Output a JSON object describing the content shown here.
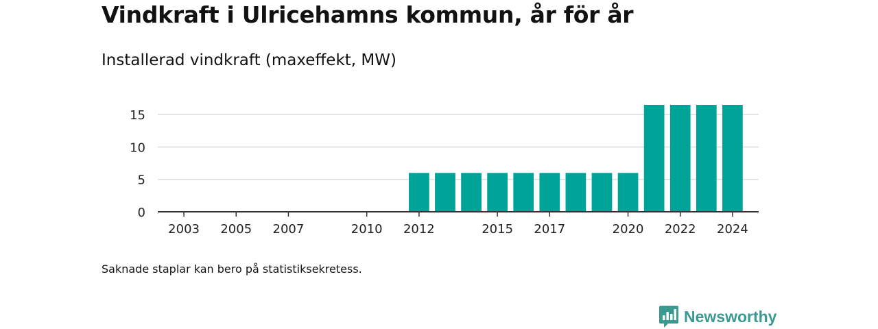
{
  "header": {
    "title": "Vindkraft i Ulricehamns kommun, år för år",
    "subtitle": "Installerad vindkraft (maxeffekt, MW)"
  },
  "footnote": "Saknade staplar kan bero på statistiksekretess.",
  "brand": {
    "name": "Newsworthy",
    "color": "#3a9a92"
  },
  "chart_data": {
    "type": "bar",
    "title": "Vindkraft i Ulricehamns kommun, år för år",
    "subtitle": "Installerad vindkraft (maxeffekt, MW)",
    "xlabel": "",
    "ylabel": "",
    "ylim": [
      0,
      16.5
    ],
    "yticks": [
      0,
      5,
      10,
      15
    ],
    "xlim": [
      2002,
      2025
    ],
    "xticks": [
      2003,
      2005,
      2007,
      2010,
      2012,
      2015,
      2017,
      2020,
      2022,
      2024
    ],
    "grid": true,
    "legend": "none",
    "bar_color": "#00a398",
    "categories": [
      2012,
      2013,
      2014,
      2015,
      2016,
      2017,
      2018,
      2019,
      2020,
      2021,
      2022,
      2023,
      2024
    ],
    "values": [
      6,
      6,
      6,
      6,
      6,
      6,
      6,
      6,
      6,
      16.5,
      16.5,
      16.5,
      16.5
    ]
  }
}
